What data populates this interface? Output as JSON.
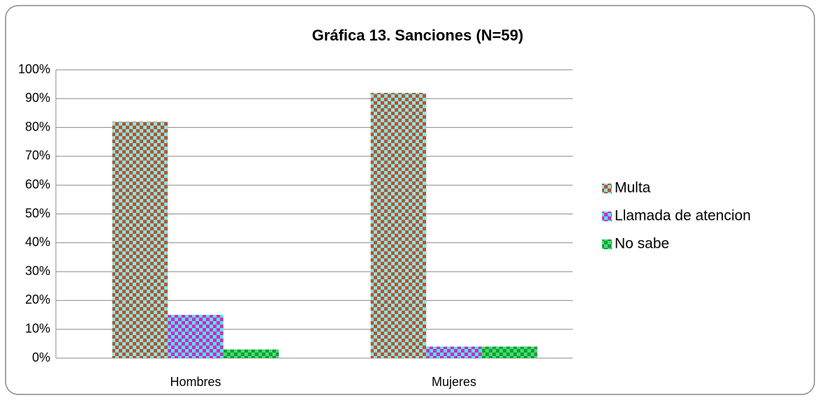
{
  "chart_data": {
    "type": "bar",
    "title": "Gráfica 13. Sanciones (N=59)",
    "categories": [
      "Hombres",
      "Mujeres"
    ],
    "series": [
      {
        "name": "Multa",
        "color": "#c0502a",
        "color2": "#7fe8e8",
        "values": [
          82,
          92
        ]
      },
      {
        "name": "Llamada de atencion",
        "color": "#e020c0",
        "color2": "#40f0f0",
        "values": [
          15,
          4
        ]
      },
      {
        "name": "No sabe",
        "color": "#1a9a3a",
        "color2": "#40e070",
        "values": [
          3,
          4
        ]
      }
    ],
    "ylim": [
      0,
      100
    ],
    "yticks": [
      {
        "value": 0,
        "label": "0%"
      },
      {
        "value": 10,
        "label": "10%"
      },
      {
        "value": 20,
        "label": "20%"
      },
      {
        "value": 30,
        "label": "30%"
      },
      {
        "value": 40,
        "label": "40%"
      },
      {
        "value": 50,
        "label": "50%"
      },
      {
        "value": 60,
        "label": "60%"
      },
      {
        "value": 70,
        "label": "70%"
      },
      {
        "value": 80,
        "label": "80%"
      },
      {
        "value": 90,
        "label": "90%"
      },
      {
        "value": 100,
        "label": "100%"
      }
    ],
    "grid": true,
    "legend": "right"
  }
}
